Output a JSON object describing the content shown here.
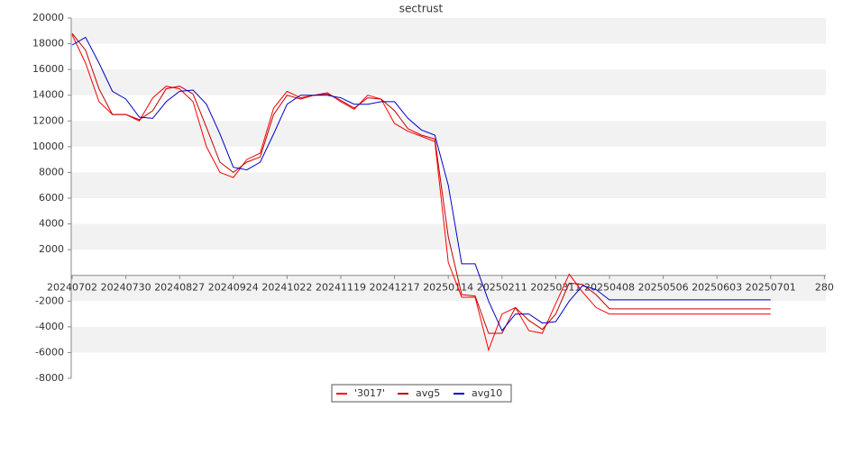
{
  "chart_data": {
    "type": "line",
    "title": "sectrust",
    "categories": [
      "20240702",
      null,
      null,
      null,
      "20240730",
      null,
      null,
      null,
      "20240827",
      null,
      null,
      null,
      "20240924",
      null,
      null,
      null,
      "20241022",
      null,
      null,
      null,
      "20241119",
      null,
      null,
      null,
      "20241217",
      null,
      null,
      null,
      "20250114",
      null,
      null,
      null,
      "20250211",
      null,
      null,
      null,
      "20250311",
      null,
      null,
      null,
      "20250408",
      null,
      null,
      null,
      "20250506",
      null,
      null,
      null,
      "20250603",
      null,
      null,
      null,
      "20250701",
      null,
      null,
      null,
      "280"
    ],
    "series": [
      {
        "name": "'3017'",
        "color": "#ff0000",
        "values": [
          18700,
          16500,
          13500,
          12500,
          12500,
          12000,
          13800,
          14700,
          14500,
          13500,
          10000,
          8000,
          7600,
          9000,
          9500,
          13000,
          14300,
          13800,
          14000,
          14200,
          13500,
          12900,
          14000,
          13700,
          11800,
          11200,
          10800,
          10400,
          1000,
          -1700,
          -1700,
          -5800,
          -3000,
          -2500,
          -4300,
          -4500,
          -2200,
          100,
          -1300,
          -2500,
          -3000,
          -3000,
          -3000,
          -3000,
          -3000,
          -3000,
          -3000,
          -3000,
          -3000,
          -3000,
          -3000,
          -3000,
          -3000,
          null,
          null,
          null,
          null
        ]
      },
      {
        "name": "avg5",
        "color": "#c00000",
        "values": [
          18800,
          17500,
          14500,
          12500,
          12500,
          12100,
          12800,
          14500,
          14700,
          14100,
          11500,
          8800,
          8000,
          8800,
          9200,
          12500,
          14000,
          13700,
          14000,
          14100,
          13600,
          13000,
          13800,
          13700,
          12800,
          11400,
          10900,
          10600,
          3000,
          -1500,
          -1600,
          -4500,
          -4500,
          -2500,
          -3500,
          -4200,
          -3000,
          -600,
          -700,
          -1500,
          -2600,
          -2600,
          -2600,
          -2600,
          -2600,
          -2600,
          -2600,
          -2600,
          -2600,
          -2600,
          -2600,
          -2600,
          -2600,
          null,
          null,
          null,
          null
        ]
      },
      {
        "name": "avg10",
        "color": "#0000cc",
        "values": [
          17900,
          18500,
          16500,
          14300,
          13700,
          12300,
          12200,
          13500,
          14300,
          14400,
          13300,
          11000,
          8400,
          8200,
          8800,
          11000,
          13300,
          14000,
          14000,
          14000,
          13800,
          13300,
          13300,
          13500,
          13500,
          12200,
          11300,
          10900,
          7000,
          900,
          900,
          -2000,
          -4300,
          -3000,
          -3000,
          -3700,
          -3600,
          -2000,
          -800,
          -1100,
          -1900,
          -1900,
          -1900,
          -1900,
          -1900,
          -1900,
          -1900,
          -1900,
          -1900,
          -1900,
          -1900,
          -1900,
          -1900,
          null,
          null,
          null,
          null
        ]
      }
    ],
    "ylim": [
      -8000,
      20000
    ],
    "yticks": [
      -8000,
      -6000,
      -4000,
      -2000,
      2000,
      4000,
      6000,
      8000,
      10000,
      12000,
      14000,
      16000,
      18000,
      20000
    ],
    "grid": true,
    "legend": "bottom"
  }
}
